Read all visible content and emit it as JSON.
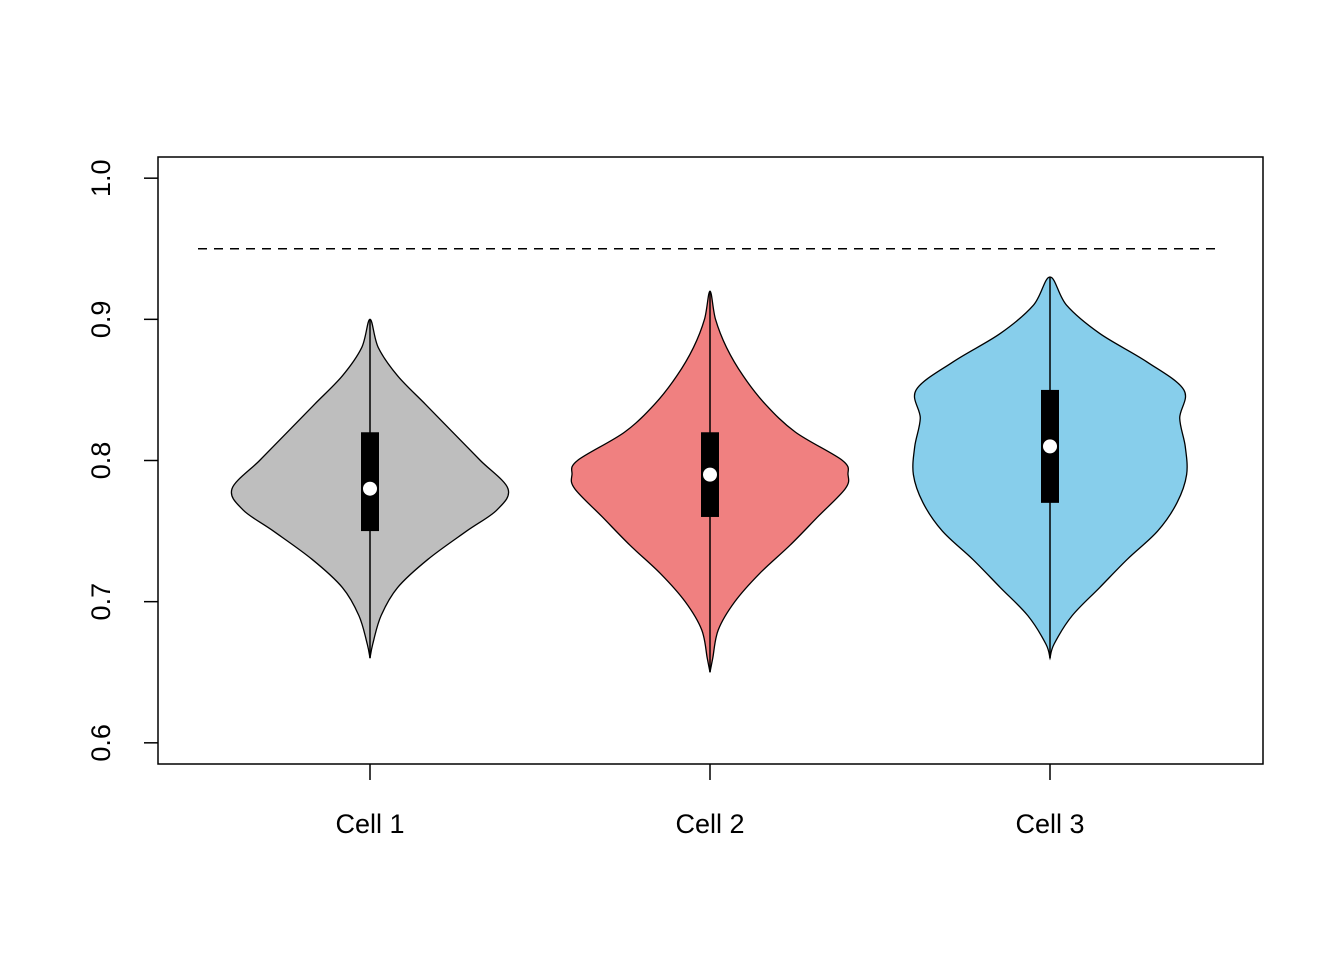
{
  "chart_data": {
    "type": "violin",
    "title": "",
    "xlabel": "",
    "ylabel": "",
    "ylim": [
      0.585,
      1.015
    ],
    "yticks": [
      0.6,
      0.7,
      0.8,
      0.9,
      1.0
    ],
    "ytick_labels": [
      "0.6",
      "0.7",
      "0.8",
      "0.9",
      "1.0"
    ],
    "categories": [
      "Cell 1",
      "Cell 2",
      "Cell 3"
    ],
    "reference_line": {
      "y": 0.95,
      "style": "dashed"
    },
    "grid": false,
    "legend": "none",
    "violins": [
      {
        "category": "Cell 1",
        "color": "#BEBEBE",
        "min": 0.66,
        "max": 0.9,
        "q1": 0.75,
        "median": 0.78,
        "q3": 0.82,
        "density": [
          [
            0.66,
            0.0
          ],
          [
            0.67,
            0.02
          ],
          [
            0.69,
            0.08
          ],
          [
            0.71,
            0.2
          ],
          [
            0.73,
            0.42
          ],
          [
            0.75,
            0.7
          ],
          [
            0.765,
            0.92
          ],
          [
            0.78,
            1.0
          ],
          [
            0.8,
            0.8
          ],
          [
            0.82,
            0.6
          ],
          [
            0.84,
            0.4
          ],
          [
            0.86,
            0.2
          ],
          [
            0.88,
            0.06
          ],
          [
            0.9,
            0.0
          ]
        ]
      },
      {
        "category": "Cell 2",
        "color": "#F08080",
        "min": 0.65,
        "max": 0.92,
        "q1": 0.76,
        "median": 0.79,
        "q3": 0.82,
        "density": [
          [
            0.65,
            0.0
          ],
          [
            0.66,
            0.02
          ],
          [
            0.68,
            0.06
          ],
          [
            0.7,
            0.18
          ],
          [
            0.72,
            0.36
          ],
          [
            0.74,
            0.58
          ],
          [
            0.76,
            0.78
          ],
          [
            0.78,
            0.98
          ],
          [
            0.79,
            1.0
          ],
          [
            0.8,
            0.96
          ],
          [
            0.82,
            0.62
          ],
          [
            0.84,
            0.4
          ],
          [
            0.86,
            0.24
          ],
          [
            0.88,
            0.12
          ],
          [
            0.9,
            0.04
          ],
          [
            0.92,
            0.0
          ]
        ]
      },
      {
        "category": "Cell 3",
        "color": "#87CEEB",
        "min": 0.66,
        "max": 0.93,
        "q1": 0.77,
        "median": 0.81,
        "q3": 0.85,
        "density": [
          [
            0.66,
            0.0
          ],
          [
            0.67,
            0.03
          ],
          [
            0.69,
            0.16
          ],
          [
            0.71,
            0.36
          ],
          [
            0.73,
            0.56
          ],
          [
            0.75,
            0.78
          ],
          [
            0.77,
            0.92
          ],
          [
            0.79,
            0.99
          ],
          [
            0.81,
            0.98
          ],
          [
            0.83,
            0.94
          ],
          [
            0.85,
            0.97
          ],
          [
            0.87,
            0.7
          ],
          [
            0.89,
            0.36
          ],
          [
            0.91,
            0.12
          ],
          [
            0.93,
            0.0
          ]
        ]
      }
    ]
  }
}
